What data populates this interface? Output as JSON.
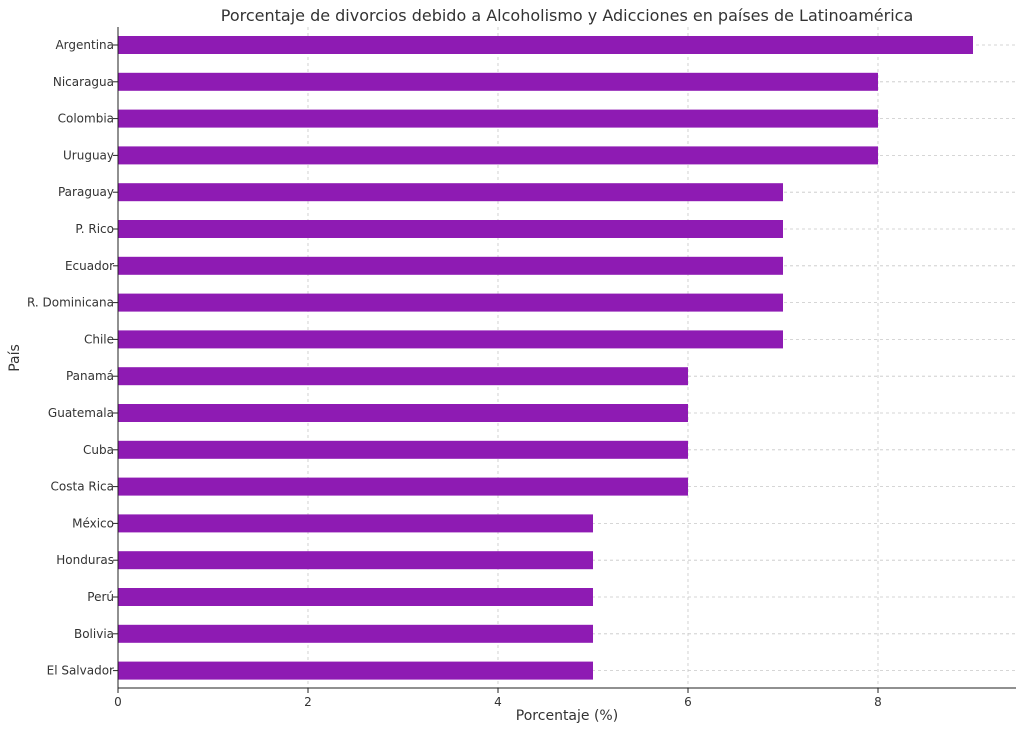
{
  "chart_data": {
    "type": "bar",
    "orientation": "horizontal",
    "title": "Porcentaje de divorcios debido a Alcoholismo y Adicciones en países de Latinoamérica",
    "xlabel": "Porcentaje (%)",
    "ylabel": "País",
    "xlim": [
      0,
      9.45
    ],
    "xticks": [
      0,
      2,
      4,
      6,
      8
    ],
    "grid": true,
    "bar_color": "#8e1bb3",
    "categories": [
      "Argentina",
      "Nicaragua",
      "Colombia",
      "Uruguay",
      "Paraguay",
      "P. Rico",
      "Ecuador",
      "R. Dominicana",
      "Chile",
      "Panamá",
      "Guatemala",
      "Cuba",
      "Costa Rica",
      "México",
      "Honduras",
      "Perú",
      "Bolivia",
      "El Salvador"
    ],
    "values": [
      9,
      8,
      8,
      8,
      7,
      7,
      7,
      7,
      7,
      6,
      6,
      6,
      6,
      5,
      5,
      5,
      5,
      5
    ]
  }
}
